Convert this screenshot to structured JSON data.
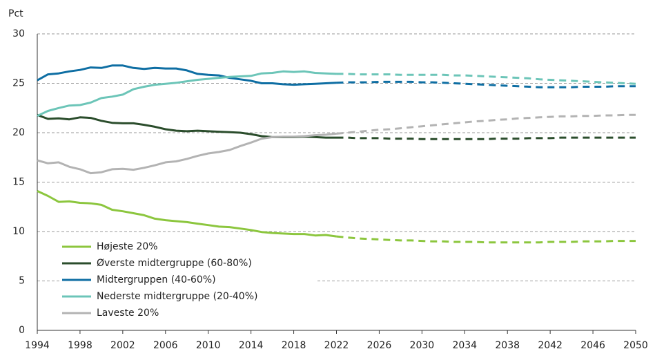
{
  "chart_data": {
    "type": "line",
    "y_axis_label": "Pct",
    "forecast_from": 2022,
    "legend": "lower left",
    "grid": true,
    "x": [
      1994,
      1995,
      1996,
      1997,
      1998,
      1999,
      2000,
      2001,
      2002,
      2003,
      2004,
      2005,
      2006,
      2007,
      2008,
      2009,
      2010,
      2011,
      2012,
      2013,
      2014,
      2015,
      2016,
      2017,
      2018,
      2019,
      2020,
      2021,
      2022,
      2023,
      2024,
      2025,
      2026,
      2027,
      2028,
      2029,
      2030,
      2031,
      2032,
      2033,
      2034,
      2035,
      2036,
      2037,
      2038,
      2039,
      2040,
      2041,
      2042,
      2043,
      2044,
      2045,
      2046,
      2047,
      2048,
      2049,
      2050
    ],
    "xlim": [
      1994,
      2050
    ],
    "xticks": [
      1994,
      1998,
      2002,
      2006,
      2010,
      2014,
      2018,
      2022,
      2026,
      2030,
      2034,
      2038,
      2042,
      2046,
      2050
    ],
    "ylim": [
      0,
      30
    ],
    "yticks": [
      0,
      5,
      10,
      15,
      20,
      25,
      30
    ],
    "series": [
      {
        "name": "Højeste 20%",
        "color": "#8cc63e",
        "values": [
          14.1,
          13.6,
          13.0,
          13.05,
          12.9,
          12.85,
          12.7,
          12.2,
          12.05,
          11.85,
          11.65,
          11.3,
          11.15,
          11.05,
          10.95,
          10.8,
          10.65,
          10.5,
          10.45,
          10.3,
          10.15,
          9.95,
          9.85,
          9.8,
          9.75,
          9.75,
          9.6,
          9.65,
          9.5,
          9.4,
          9.3,
          9.25,
          9.2,
          9.15,
          9.1,
          9.1,
          9.05,
          9.0,
          9.0,
          8.95,
          8.95,
          8.95,
          8.9,
          8.9,
          8.9,
          8.9,
          8.9,
          8.9,
          8.95,
          8.95,
          8.95,
          9.0,
          9.0,
          9.0,
          9.05,
          9.05,
          9.05
        ]
      },
      {
        "name": "Øverste midtergruppe (60-80%)",
        "color": "#2b4d2c",
        "values": [
          21.8,
          21.4,
          21.45,
          21.35,
          21.55,
          21.5,
          21.2,
          21.0,
          20.95,
          20.95,
          20.8,
          20.6,
          20.35,
          20.2,
          20.15,
          20.2,
          20.15,
          20.1,
          20.05,
          20.0,
          19.85,
          19.65,
          19.55,
          19.55,
          19.55,
          19.6,
          19.55,
          19.5,
          19.5,
          19.5,
          19.45,
          19.45,
          19.45,
          19.4,
          19.4,
          19.4,
          19.35,
          19.35,
          19.35,
          19.35,
          19.35,
          19.35,
          19.35,
          19.4,
          19.4,
          19.4,
          19.45,
          19.45,
          19.45,
          19.5,
          19.5,
          19.5,
          19.5,
          19.5,
          19.5,
          19.5,
          19.5
        ]
      },
      {
        "name": "Midtergruppen (40-60%)",
        "color": "#0e6ea3",
        "values": [
          25.3,
          25.9,
          26.0,
          26.2,
          26.35,
          26.6,
          26.55,
          26.8,
          26.8,
          26.55,
          26.45,
          26.55,
          26.5,
          26.5,
          26.3,
          25.95,
          25.85,
          25.8,
          25.55,
          25.4,
          25.25,
          25.0,
          25.0,
          24.9,
          24.85,
          24.9,
          24.95,
          25.0,
          25.05,
          25.1,
          25.1,
          25.1,
          25.15,
          25.15,
          25.15,
          25.15,
          25.1,
          25.1,
          25.05,
          25.0,
          24.95,
          24.9,
          24.85,
          24.8,
          24.75,
          24.7,
          24.65,
          24.6,
          24.6,
          24.6,
          24.6,
          24.65,
          24.65,
          24.65,
          24.7,
          24.7,
          24.7
        ]
      },
      {
        "name": "Nederste midtergruppe (20-40%)",
        "color": "#6cc5b8",
        "values": [
          21.7,
          22.2,
          22.5,
          22.75,
          22.8,
          23.05,
          23.5,
          23.65,
          23.85,
          24.4,
          24.65,
          24.85,
          24.95,
          25.05,
          25.2,
          25.35,
          25.45,
          25.55,
          25.65,
          25.7,
          25.75,
          26.0,
          26.05,
          26.2,
          26.15,
          26.2,
          26.05,
          26.0,
          25.95,
          25.95,
          25.9,
          25.9,
          25.9,
          25.9,
          25.85,
          25.85,
          25.85,
          25.85,
          25.85,
          25.8,
          25.8,
          25.75,
          25.7,
          25.65,
          25.6,
          25.55,
          25.5,
          25.4,
          25.35,
          25.3,
          25.25,
          25.2,
          25.15,
          25.1,
          25.05,
          25.0,
          24.95
        ]
      },
      {
        "name": "Laveste 20%",
        "color": "#b3b3b3",
        "values": [
          17.2,
          16.9,
          17.0,
          16.55,
          16.3,
          15.9,
          16.0,
          16.3,
          16.35,
          16.25,
          16.45,
          16.7,
          17.0,
          17.1,
          17.35,
          17.65,
          17.9,
          18.05,
          18.25,
          18.65,
          19.0,
          19.4,
          19.55,
          19.6,
          19.6,
          19.65,
          19.75,
          19.8,
          19.9,
          20.0,
          20.1,
          20.2,
          20.3,
          20.35,
          20.45,
          20.55,
          20.65,
          20.75,
          20.85,
          20.95,
          21.05,
          21.15,
          21.2,
          21.3,
          21.35,
          21.45,
          21.5,
          21.55,
          21.6,
          21.65,
          21.65,
          21.7,
          21.7,
          21.75,
          21.75,
          21.8,
          21.8
        ]
      }
    ]
  }
}
